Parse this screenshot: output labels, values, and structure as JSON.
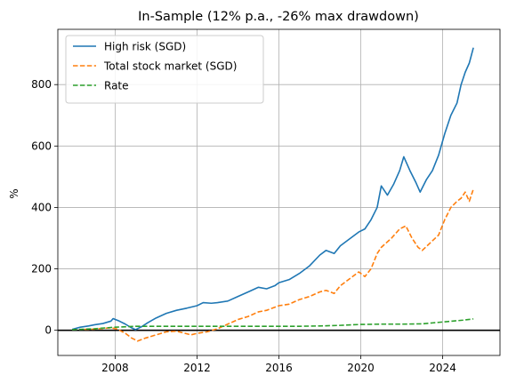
{
  "chart_data": {
    "type": "line",
    "title": "In-Sample (12% p.a., -26% max drawdown)",
    "xlabel": "",
    "ylabel": "%",
    "xlim": [
      2005.2,
      2026.8
    ],
    "ylim": [
      -82,
      980
    ],
    "x_ticks": [
      2008,
      2012,
      2016,
      2020,
      2024
    ],
    "x_tick_labels": [
      "2008",
      "2012",
      "2016",
      "2020",
      "2024"
    ],
    "y_ticks": [
      0,
      200,
      400,
      600,
      800
    ],
    "y_tick_labels": [
      "0",
      "200",
      "400",
      "600",
      "800"
    ],
    "grid": true,
    "legend_position": "top-left",
    "zero_line": 0,
    "series": [
      {
        "name": "High risk (SGD)",
        "color": "#1f77b4",
        "style": "solid",
        "x": [
          2005.9,
          2006.3,
          2006.7,
          2007.0,
          2007.4,
          2007.8,
          2007.9,
          2008.2,
          2008.5,
          2008.8,
          2009.0,
          2009.3,
          2009.6,
          2010.0,
          2010.5,
          2011.0,
          2011.5,
          2012.0,
          2012.3,
          2012.7,
          2013.0,
          2013.5,
          2014.0,
          2014.5,
          2015.0,
          2015.4,
          2015.8,
          2016.0,
          2016.5,
          2017.0,
          2017.5,
          2018.0,
          2018.3,
          2018.7,
          2019.0,
          2019.5,
          2019.9,
          2020.2,
          2020.5,
          2020.8,
          2021.0,
          2021.3,
          2021.6,
          2021.9,
          2022.1,
          2022.4,
          2022.7,
          2022.9,
          2023.2,
          2023.5,
          2023.8,
          2024.1,
          2024.4,
          2024.7,
          2024.9,
          2025.1,
          2025.3,
          2025.5
        ],
        "values": [
          3,
          10,
          14,
          18,
          22,
          30,
          38,
          30,
          20,
          8,
          2,
          12,
          25,
          40,
          55,
          65,
          72,
          80,
          90,
          88,
          90,
          95,
          110,
          125,
          140,
          135,
          145,
          155,
          165,
          185,
          210,
          245,
          260,
          250,
          275,
          300,
          320,
          330,
          360,
          400,
          470,
          440,
          475,
          520,
          565,
          520,
          480,
          450,
          490,
          520,
          570,
          640,
          700,
          740,
          800,
          840,
          870,
          920
        ]
      },
      {
        "name": "Total stock market (SGD)",
        "color": "#ff7f0e",
        "style": "dashed",
        "x": [
          2006.5,
          2007.0,
          2007.4,
          2007.8,
          2008.1,
          2008.5,
          2008.8,
          2009.1,
          2009.5,
          2010.0,
          2010.5,
          2011.0,
          2011.3,
          2011.7,
          2012.0,
          2012.5,
          2013.0,
          2013.5,
          2014.0,
          2014.5,
          2015.0,
          2015.4,
          2015.8,
          2016.0,
          2016.5,
          2017.0,
          2017.5,
          2018.0,
          2018.3,
          2018.7,
          2019.0,
          2019.5,
          2019.9,
          2020.2,
          2020.5,
          2020.8,
          2021.0,
          2021.5,
          2021.9,
          2022.2,
          2022.5,
          2022.8,
          2023.0,
          2023.4,
          2023.8,
          2024.1,
          2024.4,
          2024.7,
          2024.9,
          2025.1,
          2025.3,
          2025.5
        ],
        "values": [
          3,
          4,
          6,
          8,
          4,
          -10,
          -25,
          -35,
          -25,
          -15,
          -5,
          -3,
          -8,
          -15,
          -10,
          -5,
          5,
          20,
          35,
          45,
          60,
          65,
          75,
          80,
          85,
          100,
          110,
          125,
          130,
          120,
          145,
          170,
          190,
          175,
          200,
          250,
          270,
          300,
          330,
          340,
          300,
          270,
          260,
          285,
          310,
          360,
          400,
          420,
          430,
          450,
          420,
          460
        ]
      },
      {
        "name": "Rate",
        "color": "#2ca02c",
        "style": "dashed",
        "x": [
          2005.9,
          2007.0,
          2008.0,
          2009.0,
          2010.0,
          2011.0,
          2012.0,
          2013.0,
          2014.0,
          2015.0,
          2016.0,
          2017.0,
          2018.0,
          2019.0,
          2020.0,
          2021.0,
          2022.0,
          2023.0,
          2023.5,
          2024.0,
          2024.5,
          2025.0,
          2025.5
        ],
        "values": [
          2,
          5,
          10,
          13,
          13,
          13,
          13,
          13,
          13,
          13,
          13,
          13,
          14,
          16,
          19,
          20,
          20,
          21,
          24,
          27,
          30,
          33,
          37
        ]
      }
    ]
  }
}
